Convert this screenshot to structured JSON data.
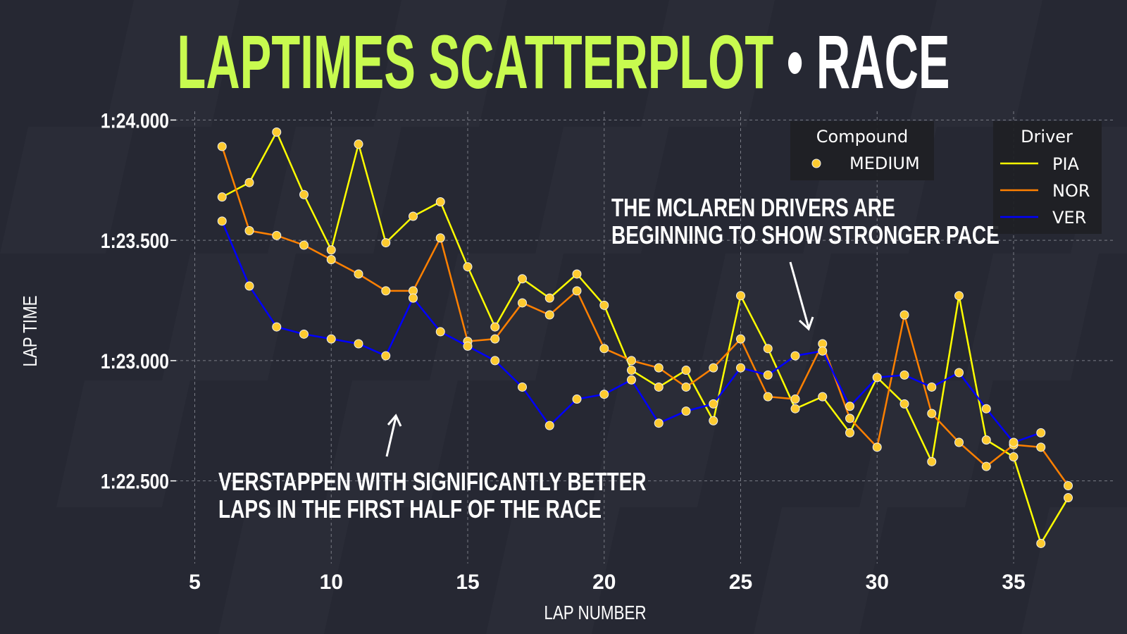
{
  "title": {
    "main": "LAPTIMES SCATTERPLOT",
    "separator": "•",
    "session": "RACE",
    "main_color": "#c8fb4f",
    "session_color": "#ffffff"
  },
  "chart_data": {
    "type": "scatter",
    "xlabel": "LAP NUMBER",
    "ylabel": "LAP TIME",
    "xlim": [
      4.5,
      38.5
    ],
    "ylim": [
      82.1,
      84.05
    ],
    "x_ticks": [
      5,
      10,
      15,
      20,
      25,
      30,
      35
    ],
    "y_ticks": [
      {
        "value": 84.0,
        "label": "1:24.000"
      },
      {
        "value": 83.5,
        "label": "1:23.500"
      },
      {
        "value": 83.0,
        "label": "1:23.000"
      },
      {
        "value": 82.5,
        "label": "1:22.500"
      }
    ],
    "grid": true,
    "marker_color": "#fdca2f",
    "compound_legend": {
      "title": "Compound",
      "entries": [
        "MEDIUM"
      ]
    },
    "driver_legend": {
      "title": "Driver",
      "placement": "top-right"
    },
    "series": [
      {
        "name": "PIA",
        "color": "#ffff00",
        "x": [
          6,
          7,
          8,
          9,
          10,
          11,
          12,
          13,
          14,
          15,
          16,
          17,
          18,
          19,
          20,
          21,
          22,
          23,
          24,
          25,
          26,
          27,
          28,
          29,
          30,
          31,
          32,
          33,
          34,
          35,
          36,
          37
        ],
        "values": [
          83.68,
          83.74,
          83.95,
          83.69,
          83.46,
          83.9,
          83.49,
          83.6,
          83.66,
          83.39,
          83.14,
          83.34,
          83.26,
          83.36,
          83.23,
          82.96,
          82.89,
          82.96,
          82.75,
          83.27,
          83.05,
          82.8,
          82.85,
          82.7,
          82.93,
          82.82,
          82.58,
          83.27,
          82.67,
          82.6,
          82.24,
          82.43
        ]
      },
      {
        "name": "NOR",
        "color": "#ff8000",
        "x": [
          6,
          7,
          8,
          9,
          10,
          11,
          12,
          13,
          14,
          15,
          16,
          17,
          18,
          19,
          20,
          21,
          22,
          23,
          24,
          25,
          26,
          27,
          28,
          29,
          30,
          31,
          32,
          33,
          34,
          35,
          36,
          37
        ],
        "values": [
          83.89,
          83.54,
          83.52,
          83.48,
          83.42,
          83.36,
          83.29,
          83.29,
          83.51,
          83.08,
          83.09,
          83.24,
          83.19,
          83.29,
          83.05,
          83.0,
          82.97,
          82.89,
          82.97,
          83.09,
          82.85,
          82.84,
          83.07,
          82.76,
          82.64,
          83.19,
          82.78,
          82.66,
          82.56,
          82.65,
          82.64,
          82.48
        ]
      },
      {
        "name": "VER",
        "color": "#0000ff",
        "x": [
          6,
          7,
          8,
          9,
          10,
          11,
          12,
          13,
          14,
          15,
          16,
          17,
          18,
          19,
          20,
          21,
          22,
          23,
          24,
          25,
          26,
          27,
          28,
          29,
          30,
          31,
          32,
          33,
          34,
          35,
          36
        ],
        "values": [
          83.58,
          83.31,
          83.14,
          83.11,
          83.09,
          83.07,
          83.02,
          83.26,
          83.12,
          83.06,
          83.0,
          82.89,
          82.73,
          82.84,
          82.86,
          82.92,
          82.74,
          82.79,
          82.82,
          82.97,
          82.94,
          83.02,
          83.04,
          82.81,
          82.93,
          82.94,
          82.89,
          82.95,
          82.8,
          82.66,
          82.7
        ]
      }
    ],
    "annotations": [
      {
        "lines": [
          "VERSTAPPEN WITH SIGNIFICANTLY BETTER",
          "LAPS IN THE FIRST HALF OF THE RACE"
        ]
      },
      {
        "lines": [
          "THE MCLAREN DRIVERS ARE",
          "BEGINNING TO SHOW STRONGER PACE"
        ]
      }
    ]
  }
}
